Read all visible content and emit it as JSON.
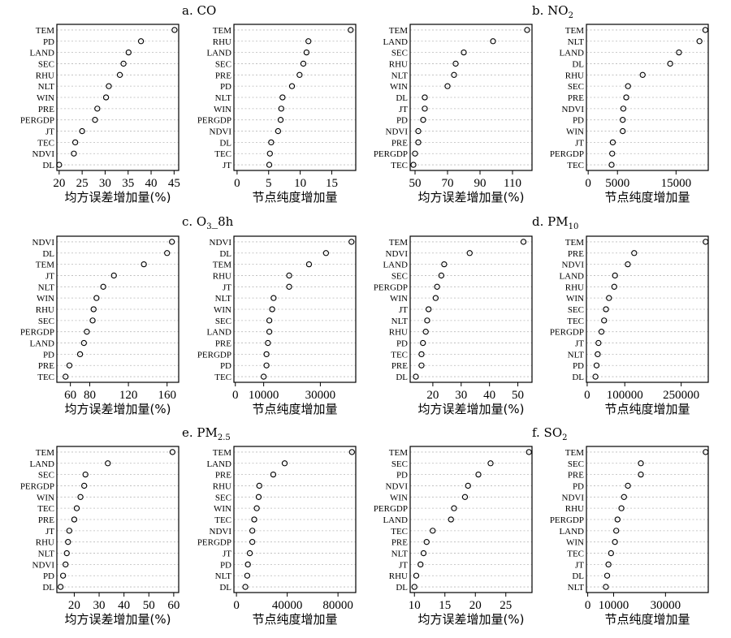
{
  "figure": {
    "colors": {
      "frame": "#000000",
      "guide": "#b8b8b8",
      "marker": "#000000"
    },
    "panel_titles": [
      {
        "prefix": "a. CO",
        "sub": "",
        "suffix": ""
      },
      {
        "prefix": "b. NO",
        "sub": "2",
        "suffix": ""
      },
      {
        "prefix": "c. O",
        "sub": "3",
        "suffix": "_8h"
      },
      {
        "prefix": "d. PM",
        "sub": "10",
        "suffix": ""
      },
      {
        "prefix": "e. PM",
        "sub": "2.5",
        "suffix": ""
      },
      {
        "prefix": "f. SO",
        "sub": "2",
        "suffix": ""
      }
    ]
  },
  "chart_data": [
    {
      "type": "scatter",
      "panel": "a. CO",
      "measure": "均方误差增加量(%)",
      "xlabel": "均方误差增加量(%)",
      "xlim": [
        19.5,
        46
      ],
      "xticks": [
        20,
        25,
        30,
        35,
        40,
        45
      ],
      "categories": [
        "TEM",
        "PD",
        "LAND",
        "SEC",
        "RHU",
        "NLT",
        "WIN",
        "PRE",
        "PERGDP",
        "JT",
        "TEC",
        "NDVI",
        "DL"
      ],
      "values": [
        45.1,
        37.8,
        35.1,
        34.0,
        33.2,
        30.8,
        30.2,
        28.3,
        27.8,
        25.0,
        23.5,
        23.2,
        20.0
      ]
    },
    {
      "type": "scatter",
      "panel": "a. CO",
      "measure": "节点纯度增加量",
      "xlabel": "节点纯度增加量",
      "xlim": [
        -0.5,
        18.8
      ],
      "xticks": [
        0,
        5,
        10,
        15
      ],
      "categories": [
        "TEM",
        "RHU",
        "LAND",
        "SEC",
        "PRE",
        "PD",
        "NLT",
        "WIN",
        "PERGDP",
        "NDVI",
        "DL",
        "TEC",
        "JT"
      ],
      "values": [
        18.0,
        11.3,
        11.0,
        10.5,
        9.9,
        8.7,
        7.2,
        7.0,
        6.9,
        6.5,
        5.4,
        5.2,
        5.1
      ]
    },
    {
      "type": "scatter",
      "panel": "b. NO2",
      "measure": "均方误差增加量(%)",
      "xlabel": "均方误差增加量(%)",
      "xlim": [
        47,
        122
      ],
      "xticks": [
        50,
        70,
        90,
        110
      ],
      "categories": [
        "TEM",
        "LAND",
        "SEC",
        "RHU",
        "NLT",
        "WIN",
        "DL",
        "JT",
        "PD",
        "NDVI",
        "PRE",
        "PERGDP",
        "TEC"
      ],
      "values": [
        119,
        98,
        80,
        75,
        74,
        70,
        56,
        56,
        55,
        52,
        52,
        50,
        49
      ]
    },
    {
      "type": "scatter",
      "panel": "b. NO2",
      "measure": "节点纯度增加量",
      "xlabel": "节点纯度增加量",
      "xlim": [
        -300,
        20500
      ],
      "xticks": [
        0,
        5000,
        15000
      ],
      "categories": [
        "TEM",
        "NLT",
        "LAND",
        "DL",
        "RHU",
        "SEC",
        "PRE",
        "NDVI",
        "PD",
        "WIN",
        "JT",
        "PERGDP",
        "TEC"
      ],
      "values": [
        20000,
        19000,
        15500,
        14000,
        9300,
        6800,
        6500,
        6000,
        5900,
        5900,
        4200,
        4100,
        4000
      ]
    },
    {
      "type": "scatter",
      "panel": "c. O3_8h",
      "measure": "均方误差增加量(%)",
      "xlabel": "均方误差增加量(%)",
      "xlim": [
        46,
        172
      ],
      "xticks": [
        60,
        80,
        120,
        160
      ],
      "categories": [
        "NDVI",
        "DL",
        "TEM",
        "JT",
        "NLT",
        "WIN",
        "RHU",
        "SEC",
        "PERGDP",
        "LAND",
        "PD",
        "PRE",
        "TEC"
      ],
      "values": [
        165,
        160,
        136,
        105,
        94,
        87,
        84,
        83,
        77,
        74,
        70,
        59,
        55
      ]
    },
    {
      "type": "scatter",
      "panel": "c. O3_8h",
      "measure": "节点纯度增加量",
      "xlabel": "节点纯度增加量",
      "xlim": [
        -500,
        42500
      ],
      "xticks": [
        0,
        10000,
        30000
      ],
      "categories": [
        "NDVI",
        "DL",
        "TEM",
        "RHU",
        "JT",
        "NLT",
        "WIN",
        "SEC",
        "LAND",
        "PRE",
        "PERGDP",
        "PD",
        "TEC"
      ],
      "values": [
        41000,
        32000,
        26000,
        19000,
        19000,
        13500,
        13000,
        12000,
        12000,
        11500,
        11000,
        11000,
        10000
      ]
    },
    {
      "type": "scatter",
      "panel": "d. PM10",
      "measure": "均方误差增加量(%)",
      "xlabel": "均方误差增加量(%)",
      "xlim": [
        12,
        55
      ],
      "xticks": [
        20,
        30,
        40,
        50
      ],
      "categories": [
        "TEM",
        "NDVI",
        "LAND",
        "SEC",
        "PERGDP",
        "WIN",
        "JT",
        "NLT",
        "RHU",
        "PD",
        "TEC",
        "PRE",
        "DL"
      ],
      "values": [
        52,
        33,
        24,
        23,
        21.5,
        21,
        18.5,
        18,
        17.5,
        16.5,
        16,
        16,
        14
      ]
    },
    {
      "type": "scatter",
      "panel": "d. PM10",
      "measure": "节点纯度增加量",
      "xlabel": "节点纯度增加量",
      "xlim": [
        -2000,
        322000
      ],
      "xticks": [
        0,
        100000,
        250000
      ],
      "categories": [
        "TEM",
        "PRE",
        "NDVI",
        "LAND",
        "RHU",
        "WIN",
        "SEC",
        "TEC",
        "PERGDP",
        "JT",
        "NLT",
        "PD",
        "DL"
      ],
      "values": [
        315000,
        125000,
        108000,
        74000,
        72000,
        58000,
        50000,
        45000,
        38000,
        30000,
        28000,
        25000,
        22000
      ]
    },
    {
      "type": "scatter",
      "panel": "e. PM2.5",
      "measure": "均方误差增加量(%)",
      "xlabel": "均方误差增加量(%)",
      "xlim": [
        13,
        62
      ],
      "xticks": [
        20,
        30,
        40,
        50,
        60
      ],
      "categories": [
        "TEM",
        "LAND",
        "SEC",
        "PERGDP",
        "WIN",
        "TEC",
        "PRE",
        "JT",
        "RHU",
        "NLT",
        "NDVI",
        "PD",
        "DL"
      ],
      "values": [
        59.5,
        33.5,
        24.5,
        24,
        22.5,
        21,
        20,
        18,
        17.5,
        17,
        16.5,
        15.5,
        14.5
      ]
    },
    {
      "type": "scatter",
      "panel": "e. PM2.5",
      "measure": "节点纯度增加量",
      "xlabel": "节点纯度增加量",
      "xlim": [
        -2000,
        94000
      ],
      "xticks": [
        0,
        40000,
        80000
      ],
      "categories": [
        "TEM",
        "LAND",
        "PRE",
        "RHU",
        "SEC",
        "WIN",
        "TEC",
        "NDVI",
        "PERGDP",
        "JT",
        "PD",
        "NLT",
        "DL"
      ],
      "values": [
        91000,
        38000,
        29000,
        18000,
        17500,
        16000,
        14000,
        12500,
        12500,
        10500,
        9000,
        8500,
        7000
      ]
    },
    {
      "type": "scatter",
      "panel": "f. SO2",
      "measure": "均方误差增加量(%)",
      "xlabel": "均方误差增加量(%)",
      "xlim": [
        9.3,
        29.3
      ],
      "xticks": [
        10,
        15,
        20,
        25
      ],
      "categories": [
        "TEM",
        "SEC",
        "PD",
        "NDVI",
        "WIN",
        "PERGDP",
        "LAND",
        "TEC",
        "PRE",
        "NLT",
        "JT",
        "RHU",
        "DL"
      ],
      "values": [
        28.8,
        22.5,
        20.5,
        18.8,
        18.3,
        16.5,
        16,
        13,
        12,
        11.5,
        11,
        10.3,
        10
      ]
    },
    {
      "type": "scatter",
      "panel": "f. SO2",
      "measure": "节点纯度增加量",
      "xlabel": "节点纯度增加量",
      "xlim": [
        -500,
        46500
      ],
      "xticks": [
        0,
        10000,
        30000
      ],
      "categories": [
        "TEM",
        "SEC",
        "PRE",
        "PD",
        "NDVI",
        "RHU",
        "PERGDP",
        "LAND",
        "WIN",
        "TEC",
        "JT",
        "DL",
        "NLT"
      ],
      "values": [
        45500,
        20500,
        20500,
        15500,
        14000,
        13000,
        11500,
        11000,
        10500,
        9000,
        8000,
        7500,
        7000
      ]
    }
  ]
}
